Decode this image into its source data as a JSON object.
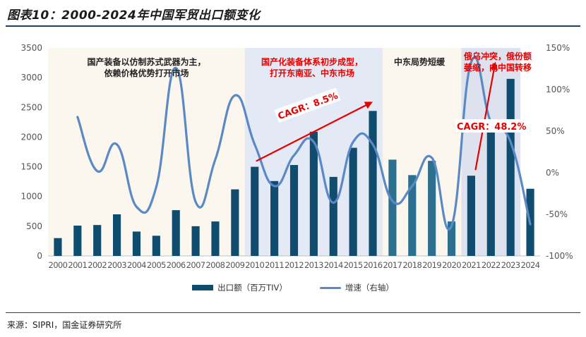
{
  "title": "图表10：2000-2024年中国军贸出口额变化",
  "source": "来源：SIPRI，国金证券研究所",
  "legend": {
    "bar_label": "出口额（百万TIV）",
    "line_label": "增速（右轴）"
  },
  "regions": [
    {
      "label": "国产装备以仿制苏式武器为主，依赖价格优势打开市场",
      "from": "2000",
      "to": "2009",
      "fill": "#fbf6ee",
      "text_color": "#222222"
    },
    {
      "label": "国产化装备体系初步成型，打开东南亚、中东市场",
      "from": "2010",
      "to": "2016",
      "fill": "#e3eaf6",
      "text_color": "#e60000"
    },
    {
      "label": "中东局势短缓",
      "from": "2017",
      "to": "2020",
      "fill": "#fbf6ee",
      "text_color": "#222222"
    },
    {
      "label": "俄乌冲突，俄份额萎缩，向中国转移",
      "from": "2021",
      "to": "2023",
      "fill": "#dde2ee",
      "text_color": "#e60000"
    }
  ],
  "region_lines": [
    [
      "国产装备以仿制苏式武器为主，",
      "依赖价格优势打开市场"
    ],
    [
      "国产化装备体系初步成型，",
      "打开东南亚、中东市场"
    ],
    [
      "中东局势短缓"
    ],
    [
      "俄乌冲突，俄份额",
      "萎缩，向中国转移"
    ]
  ],
  "annotations": {
    "cagr1": "CAGR：8.5%",
    "cagr2": "CAGR：48.2%"
  },
  "colors": {
    "bar": "#0f4c6e",
    "bar_mid": "#2d6f8f",
    "line": "#5b89c5",
    "arrow": "#e60000",
    "axis_text": "#555555"
  },
  "chart_data": {
    "type": "bar+line",
    "categories": [
      "2000",
      "2001",
      "2002",
      "2003",
      "2004",
      "2005",
      "2006",
      "2007",
      "2008",
      "2009",
      "2010",
      "2011",
      "2012",
      "2013",
      "2014",
      "2015",
      "2016",
      "2017",
      "2018",
      "2019",
      "2020",
      "2021",
      "2022",
      "2023",
      "2024"
    ],
    "series": [
      {
        "name": "出口额（百万TIV）",
        "type": "bar",
        "axis": "left",
        "values": [
          300,
          510,
          520,
          700,
          410,
          340,
          770,
          500,
          580,
          1120,
          1500,
          1260,
          1530,
          2090,
          1330,
          1820,
          2440,
          1620,
          1360,
          1600,
          580,
          1350,
          2180,
          2980,
          1130
        ]
      },
      {
        "name": "增速（右轴）",
        "type": "line",
        "axis": "right",
        "values": [
          null,
          67,
          2,
          34,
          -41,
          -17,
          126,
          -35,
          16,
          93,
          34,
          -16,
          21,
          37,
          -36,
          37,
          34,
          -34,
          -16,
          18,
          -64,
          133,
          61,
          37,
          -62
        ]
      }
    ],
    "left_axis": {
      "min": 0,
      "max": 3500,
      "ticks": [
        0,
        500,
        1000,
        1500,
        2000,
        2500,
        3000,
        3500
      ]
    },
    "right_axis": {
      "min": -100,
      "max": 150,
      "ticks": [
        "-100%",
        "-50%",
        "0%",
        "50%",
        "100%",
        "150%"
      ]
    },
    "grid": false,
    "legend_position": "bottom"
  }
}
